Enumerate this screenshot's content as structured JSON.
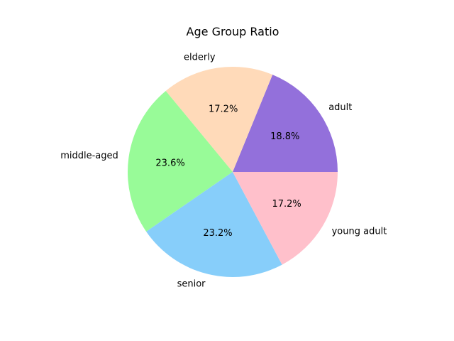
{
  "chart_data": {
    "type": "pie",
    "title": "Age Group Ratio",
    "categories": [
      "adult",
      "elderly",
      "middle-aged",
      "senior",
      "young adult"
    ],
    "values": [
      18.8,
      17.2,
      23.6,
      23.2,
      17.2
    ],
    "percent_labels": [
      "18.8%",
      "17.2%",
      "23.6%",
      "23.2%",
      "17.2%"
    ],
    "colors": [
      "#9370DB",
      "#FFDAB9",
      "#98FB98",
      "#87CEFA",
      "#FFC0CB"
    ],
    "start_angle_deg": 0,
    "direction": "counterclockwise",
    "legend": "none"
  }
}
